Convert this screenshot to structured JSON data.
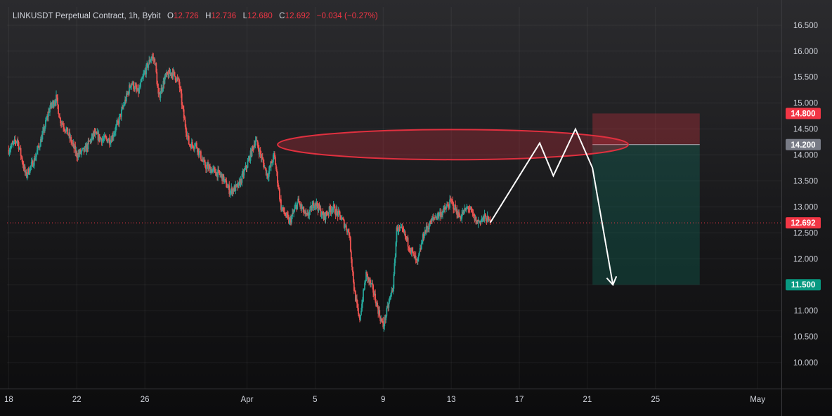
{
  "legend": {
    "symbol": "LINKUSDT Perpetual Contract, 1h, Bybit",
    "o_label": "O",
    "o": "12.726",
    "h_label": "H",
    "h": "12.736",
    "l_label": "L",
    "l": "12.680",
    "c_label": "C",
    "c": "12.692",
    "change": "−0.034 (−0.27%)"
  },
  "colors": {
    "up": "#26a69a",
    "down": "#ef5350",
    "stop_zone": "#f23645",
    "target_zone": "#089981",
    "ellipse": "#e0303f",
    "last_price": "#f23645",
    "entry_tag": "#787b86",
    "projection": "#ffffff"
  },
  "chart_data": {
    "type": "candlestick",
    "y_axis": {
      "range": [
        9.5,
        16.85
      ],
      "ticks": [
        "16.500",
        "16.000",
        "15.500",
        "15.000",
        "14.500",
        "14.000",
        "13.500",
        "13.000",
        "12.500",
        "12.000",
        "11.500",
        "11.000",
        "10.500",
        "10.000"
      ]
    },
    "x_axis": {
      "range": [
        -0.1,
        45.4
      ],
      "ticks": [
        {
          "label": "18",
          "t": 0
        },
        {
          "label": "22",
          "t": 4
        },
        {
          "label": "26",
          "t": 8
        },
        {
          "label": "Apr",
          "t": 14
        },
        {
          "label": "5",
          "t": 18
        },
        {
          "label": "9",
          "t": 22
        },
        {
          "label": "13",
          "t": 26
        },
        {
          "label": "17",
          "t": 30
        },
        {
          "label": "21",
          "t": 34
        },
        {
          "label": "25",
          "t": 38
        },
        {
          "label": "May",
          "t": 44
        }
      ]
    },
    "price_path": [
      [
        0,
        14.1
      ],
      [
        0.5,
        14.3
      ],
      [
        1,
        13.6
      ],
      [
        1.5,
        13.9
      ],
      [
        2,
        14.4
      ],
      [
        2.4,
        14.9
      ],
      [
        2.8,
        15.1
      ],
      [
        3,
        14.7
      ],
      [
        3.5,
        14.4
      ],
      [
        4,
        14.0
      ],
      [
        4.5,
        14.1
      ],
      [
        5,
        14.4
      ],
      [
        5.5,
        14.3
      ],
      [
        6,
        14.3
      ],
      [
        6.4,
        14.6
      ],
      [
        6.8,
        15.0
      ],
      [
        7.2,
        15.4
      ],
      [
        7.6,
        15.2
      ],
      [
        8,
        15.6
      ],
      [
        8.4,
        15.9
      ],
      [
        8.6,
        15.8
      ],
      [
        8.8,
        15.1
      ],
      [
        9.2,
        15.5
      ],
      [
        9.6,
        15.6
      ],
      [
        10,
        15.4
      ],
      [
        10.3,
        14.7
      ],
      [
        10.6,
        14.2
      ],
      [
        11,
        14.2
      ],
      [
        11.5,
        13.8
      ],
      [
        12,
        13.7
      ],
      [
        12.5,
        13.6
      ],
      [
        13,
        13.3
      ],
      [
        13.5,
        13.4
      ],
      [
        14,
        13.8
      ],
      [
        14.5,
        14.3
      ],
      [
        14.8,
        14.0
      ],
      [
        15.2,
        13.6
      ],
      [
        15.6,
        14.0
      ],
      [
        16,
        13.0
      ],
      [
        16.5,
        12.7
      ],
      [
        17,
        13.1
      ],
      [
        17.5,
        12.8
      ],
      [
        18,
        13.1
      ],
      [
        18.5,
        12.8
      ],
      [
        19,
        13.0
      ],
      [
        19.5,
        12.8
      ],
      [
        20,
        12.5
      ],
      [
        20.3,
        11.4
      ],
      [
        20.6,
        10.8
      ],
      [
        21,
        11.7
      ],
      [
        21.4,
        11.4
      ],
      [
        21.8,
        10.9
      ],
      [
        22,
        10.7
      ],
      [
        22.3,
        11.1
      ],
      [
        22.6,
        11.5
      ],
      [
        22.8,
        12.6
      ],
      [
        23.2,
        12.5
      ],
      [
        23.6,
        12.2
      ],
      [
        24,
        11.9
      ],
      [
        24.4,
        12.5
      ],
      [
        25,
        12.8
      ],
      [
        25.5,
        12.9
      ],
      [
        26,
        13.1
      ],
      [
        26.5,
        12.8
      ],
      [
        27,
        13.0
      ],
      [
        27.5,
        12.7
      ],
      [
        28,
        12.8
      ],
      [
        28.3,
        12.69
      ]
    ],
    "last_price": 12.692,
    "short_position": {
      "entry": 14.2,
      "stop": 14.8,
      "target": 11.5,
      "t_start": 34.3,
      "t_end": 40.6
    },
    "resistance_zone": {
      "t_center": 26.1,
      "t_half_width": 10.3,
      "price_center": 14.2,
      "price_half_height": 0.29
    },
    "projection_path": [
      [
        28.3,
        12.7
      ],
      [
        31.2,
        14.23
      ],
      [
        32,
        13.6
      ],
      [
        33.3,
        14.5
      ],
      [
        34.3,
        13.75
      ],
      [
        35.5,
        11.5
      ]
    ],
    "price_tags": [
      {
        "label": "14.800",
        "value": 14.8,
        "role": "stop"
      },
      {
        "label": "14.200",
        "value": 14.2,
        "role": "entry"
      },
      {
        "label": "12.692",
        "value": 12.692,
        "role": "last"
      },
      {
        "label": "11.500",
        "value": 11.5,
        "role": "target"
      }
    ]
  }
}
